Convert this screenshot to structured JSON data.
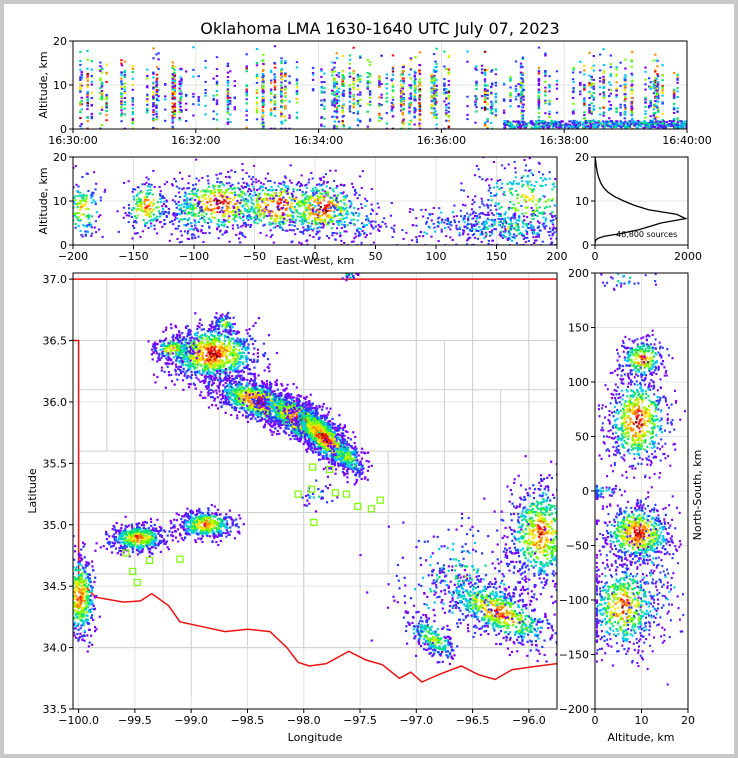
{
  "title": "Oklahoma LMA 1630-1640 UTC July 07, 2023",
  "colors": {
    "border": "#d0d0d0",
    "state_line": "#ee1111",
    "station": "#7cfc00",
    "density": [
      "#7a00ff",
      "#2a3cff",
      "#00c8ff",
      "#00e07a",
      "#7cff00",
      "#ffe600",
      "#ff8c00",
      "#ff1010",
      "#8a0000"
    ]
  },
  "chart_data": [
    {
      "id": "time-height",
      "type": "heatmap",
      "ylabel": "Altitude, km",
      "ylim": [
        0,
        20
      ],
      "xlim": [
        "16:30:00",
        "16:40:00"
      ],
      "xticks": [
        "16:30:00",
        "16:32:00",
        "16:34:00",
        "16:36:00",
        "16:38:00",
        "16:40:00"
      ],
      "yticks": [
        "0",
        "10",
        "20"
      ]
    },
    {
      "id": "ew-altitude",
      "type": "heatmap",
      "xlabel": "East-West, km",
      "ylabel": "Altitude, km",
      "xlim": [
        -200,
        200
      ],
      "ylim": [
        0,
        20
      ],
      "xticks": [
        "−200",
        "−150",
        "−100",
        "−50",
        "0",
        "50",
        "100",
        "150",
        "200"
      ],
      "yticks": [
        "0",
        "10",
        "20"
      ]
    },
    {
      "id": "altitude-histogram",
      "type": "line",
      "xlim": [
        0,
        2000
      ],
      "ylim": [
        0,
        20
      ],
      "xticks": [
        "0",
        "2000"
      ],
      "yticks": [
        "0",
        "10",
        "20"
      ],
      "annotation": "46,800 sources",
      "x": [
        3,
        10,
        60,
        200,
        500,
        950,
        1420,
        1950,
        1750,
        1150,
        850,
        620,
        420,
        280,
        190,
        130,
        90,
        60,
        40,
        25,
        15,
        8,
        4,
        2
      ],
      "y": [
        0.5,
        1,
        1.5,
        2,
        2.5,
        3.5,
        5,
        6,
        7,
        8,
        9,
        10,
        11,
        12,
        13,
        14,
        15,
        16,
        17,
        18,
        19,
        19.5,
        20,
        20.5
      ]
    },
    {
      "id": "plan-view",
      "type": "heatmap",
      "xlabel": "Longitude",
      "ylabel": "Latitude",
      "xlim": [
        -100.05,
        -95.75
      ],
      "ylim": [
        33.5,
        37.05
      ],
      "xticks": [
        "−100.0",
        "−99.5",
        "−99.0",
        "−98.5",
        "−98.0",
        "−97.5",
        "−97.0",
        "−96.5",
        "−96.0"
      ],
      "yticks": [
        "33.5",
        "34.0",
        "34.5",
        "35.0",
        "35.5",
        "36.0",
        "36.5",
        "37.0"
      ],
      "stations": [
        [
          -97.92,
          35.47
        ],
        [
          -97.77,
          35.45
        ],
        [
          -97.93,
          35.29
        ],
        [
          -98.05,
          35.25
        ],
        [
          -97.72,
          35.26
        ],
        [
          -97.62,
          35.25
        ],
        [
          -97.52,
          35.15
        ],
        [
          -97.4,
          35.13
        ],
        [
          -97.32,
          35.2
        ],
        [
          -97.91,
          35.02
        ],
        [
          -99.58,
          34.77
        ],
        [
          -99.52,
          34.62
        ],
        [
          -99.48,
          34.53
        ],
        [
          -99.37,
          34.71
        ],
        [
          -99.1,
          34.72
        ]
      ],
      "storms": [
        {
          "lon": -98.82,
          "lat": 36.4,
          "rx": 0.22,
          "ry": 0.12,
          "rot": 0,
          "peak": 8,
          "n": 900
        },
        {
          "lon": -99.17,
          "lat": 36.44,
          "rx": 0.1,
          "ry": 0.05,
          "rot": 0,
          "peak": 6,
          "n": 160
        },
        {
          "lon": -98.71,
          "lat": 36.65,
          "rx": 0.05,
          "ry": 0.04,
          "rot": 0,
          "peak": 5,
          "n": 60
        },
        {
          "lon": -98.4,
          "lat": 36.01,
          "rx": 0.22,
          "ry": 0.08,
          "rot": -18,
          "peak": 8,
          "n": 900
        },
        {
          "lon": -98.04,
          "lat": 35.86,
          "rx": 0.22,
          "ry": 0.08,
          "rot": -28,
          "peak": 8,
          "n": 950
        },
        {
          "lon": -97.83,
          "lat": 35.72,
          "rx": 0.2,
          "ry": 0.07,
          "rot": -42,
          "peak": 8,
          "n": 800
        },
        {
          "lon": -97.62,
          "lat": 35.56,
          "rx": 0.1,
          "ry": 0.05,
          "rot": -40,
          "peak": 5,
          "n": 180
        },
        {
          "lon": -99.48,
          "lat": 34.9,
          "rx": 0.13,
          "ry": 0.06,
          "rot": 0,
          "peak": 7,
          "n": 420
        },
        {
          "lon": -98.88,
          "lat": 35.01,
          "rx": 0.13,
          "ry": 0.06,
          "rot": 0,
          "peak": 7,
          "n": 420
        },
        {
          "lon": -100.0,
          "lat": 34.42,
          "rx": 0.08,
          "ry": 0.18,
          "rot": 0,
          "peak": 7,
          "n": 450
        },
        {
          "lon": -95.9,
          "lat": 34.93,
          "rx": 0.16,
          "ry": 0.22,
          "rot": 0,
          "peak": 7,
          "n": 650
        },
        {
          "lon": -96.28,
          "lat": 34.3,
          "rx": 0.28,
          "ry": 0.1,
          "rot": -25,
          "peak": 7,
          "n": 650
        },
        {
          "lon": -96.86,
          "lat": 34.08,
          "rx": 0.14,
          "ry": 0.06,
          "rot": -35,
          "peak": 5,
          "n": 220
        },
        {
          "lon": -96.6,
          "lat": 34.55,
          "rx": 0.35,
          "ry": 0.25,
          "rot": 0,
          "peak": 3,
          "n": 260
        },
        {
          "lon": -97.9,
          "lat": 35.25,
          "rx": 0.08,
          "ry": 0.06,
          "rot": 0,
          "peak": 2,
          "n": 30
        },
        {
          "lon": -97.6,
          "lat": 37.05,
          "rx": 0.05,
          "ry": 0.02,
          "rot": 0,
          "peak": 3,
          "n": 25
        }
      ]
    },
    {
      "id": "ns-altitude",
      "type": "heatmap",
      "xlabel": "Altitude, km",
      "ylabel": "North-South, km",
      "xlim": [
        0,
        20
      ],
      "ylim": [
        -200,
        200
      ],
      "xticks": [
        "0",
        "10",
        "20"
      ],
      "yticks": [
        "200",
        "150",
        "100",
        "50",
        "0",
        "−50",
        "−100",
        "−150",
        "−200"
      ]
    }
  ]
}
